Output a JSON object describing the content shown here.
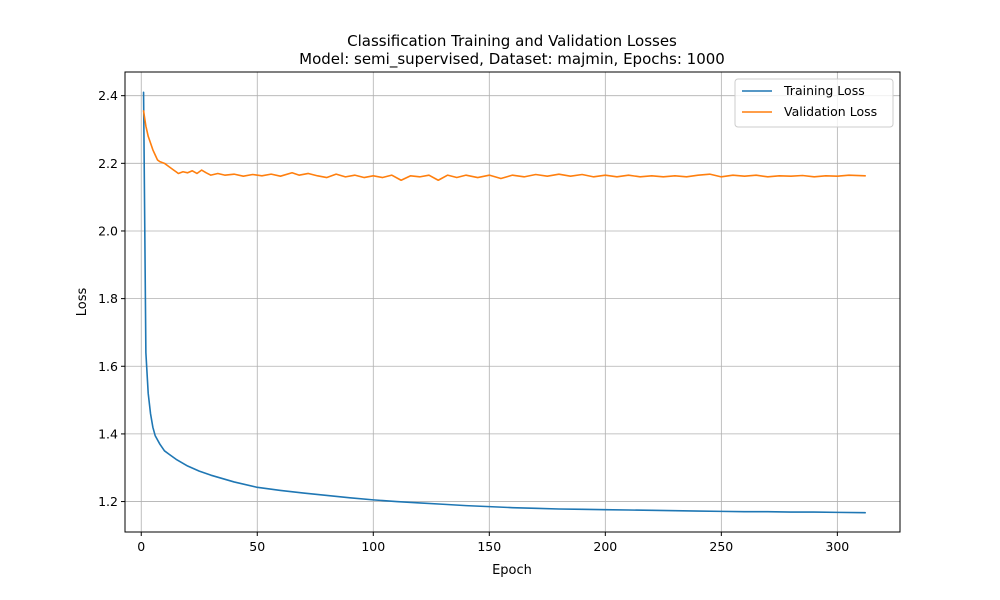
{
  "chart_data": {
    "type": "line",
    "title": "Classification Training and Validation Losses",
    "subtitle": "Model: semi_supervised, Dataset: majmin, Epochs: 1000",
    "xlabel": "Epoch",
    "ylabel": "Loss",
    "xlim": [
      -7,
      327
    ],
    "ylim": [
      1.11,
      2.47
    ],
    "xticks": [
      0,
      50,
      100,
      150,
      200,
      250,
      300
    ],
    "yticks": [
      1.2,
      1.4,
      1.6,
      1.8,
      2.0,
      2.2,
      2.4
    ],
    "grid": true,
    "legend_position": "top-right",
    "series": [
      {
        "name": "Training Loss",
        "color": "#1f77b4",
        "points": [
          [
            1,
            2.41
          ],
          [
            2,
            1.64
          ],
          [
            3,
            1.52
          ],
          [
            4,
            1.46
          ],
          [
            5,
            1.42
          ],
          [
            6,
            1.395
          ],
          [
            8,
            1.37
          ],
          [
            10,
            1.35
          ],
          [
            12,
            1.34
          ],
          [
            15,
            1.325
          ],
          [
            20,
            1.305
          ],
          [
            25,
            1.29
          ],
          [
            30,
            1.278
          ],
          [
            40,
            1.258
          ],
          [
            50,
            1.242
          ],
          [
            60,
            1.233
          ],
          [
            70,
            1.225
          ],
          [
            80,
            1.218
          ],
          [
            90,
            1.211
          ],
          [
            100,
            1.205
          ],
          [
            110,
            1.2
          ],
          [
            120,
            1.196
          ],
          [
            130,
            1.192
          ],
          [
            140,
            1.188
          ],
          [
            150,
            1.185
          ],
          [
            160,
            1.182
          ],
          [
            170,
            1.18
          ],
          [
            180,
            1.178
          ],
          [
            190,
            1.177
          ],
          [
            200,
            1.176
          ],
          [
            210,
            1.175
          ],
          [
            220,
            1.174
          ],
          [
            230,
            1.173
          ],
          [
            240,
            1.172
          ],
          [
            250,
            1.171
          ],
          [
            260,
            1.17
          ],
          [
            270,
            1.17
          ],
          [
            280,
            1.169
          ],
          [
            290,
            1.169
          ],
          [
            300,
            1.168
          ],
          [
            312,
            1.167
          ]
        ]
      },
      {
        "name": "Validation Loss",
        "color": "#ff7f0e",
        "points": [
          [
            1,
            2.355
          ],
          [
            2,
            2.31
          ],
          [
            3,
            2.28
          ],
          [
            4,
            2.26
          ],
          [
            5,
            2.24
          ],
          [
            6,
            2.225
          ],
          [
            7,
            2.21
          ],
          [
            8,
            2.205
          ],
          [
            10,
            2.2
          ],
          [
            12,
            2.19
          ],
          [
            14,
            2.18
          ],
          [
            15,
            2.175
          ],
          [
            16,
            2.17
          ],
          [
            18,
            2.175
          ],
          [
            20,
            2.172
          ],
          [
            22,
            2.178
          ],
          [
            24,
            2.17
          ],
          [
            26,
            2.18
          ],
          [
            28,
            2.172
          ],
          [
            30,
            2.165
          ],
          [
            33,
            2.17
          ],
          [
            36,
            2.165
          ],
          [
            40,
            2.168
          ],
          [
            44,
            2.162
          ],
          [
            48,
            2.167
          ],
          [
            52,
            2.163
          ],
          [
            56,
            2.168
          ],
          [
            60,
            2.162
          ],
          [
            65,
            2.172
          ],
          [
            68,
            2.165
          ],
          [
            72,
            2.17
          ],
          [
            76,
            2.163
          ],
          [
            80,
            2.158
          ],
          [
            84,
            2.168
          ],
          [
            88,
            2.16
          ],
          [
            92,
            2.165
          ],
          [
            96,
            2.158
          ],
          [
            100,
            2.163
          ],
          [
            104,
            2.158
          ],
          [
            108,
            2.165
          ],
          [
            112,
            2.15
          ],
          [
            116,
            2.163
          ],
          [
            120,
            2.16
          ],
          [
            124,
            2.165
          ],
          [
            128,
            2.15
          ],
          [
            132,
            2.165
          ],
          [
            136,
            2.158
          ],
          [
            140,
            2.165
          ],
          [
            145,
            2.158
          ],
          [
            150,
            2.165
          ],
          [
            155,
            2.155
          ],
          [
            160,
            2.165
          ],
          [
            165,
            2.16
          ],
          [
            170,
            2.167
          ],
          [
            175,
            2.162
          ],
          [
            180,
            2.168
          ],
          [
            185,
            2.162
          ],
          [
            190,
            2.167
          ],
          [
            195,
            2.16
          ],
          [
            200,
            2.165
          ],
          [
            205,
            2.16
          ],
          [
            210,
            2.165
          ],
          [
            215,
            2.16
          ],
          [
            220,
            2.163
          ],
          [
            225,
            2.16
          ],
          [
            230,
            2.163
          ],
          [
            235,
            2.16
          ],
          [
            240,
            2.165
          ],
          [
            245,
            2.168
          ],
          [
            250,
            2.16
          ],
          [
            255,
            2.165
          ],
          [
            260,
            2.162
          ],
          [
            265,
            2.165
          ],
          [
            270,
            2.16
          ],
          [
            275,
            2.163
          ],
          [
            280,
            2.162
          ],
          [
            285,
            2.164
          ],
          [
            290,
            2.16
          ],
          [
            295,
            2.163
          ],
          [
            300,
            2.162
          ],
          [
            305,
            2.165
          ],
          [
            312,
            2.163
          ]
        ]
      }
    ]
  }
}
